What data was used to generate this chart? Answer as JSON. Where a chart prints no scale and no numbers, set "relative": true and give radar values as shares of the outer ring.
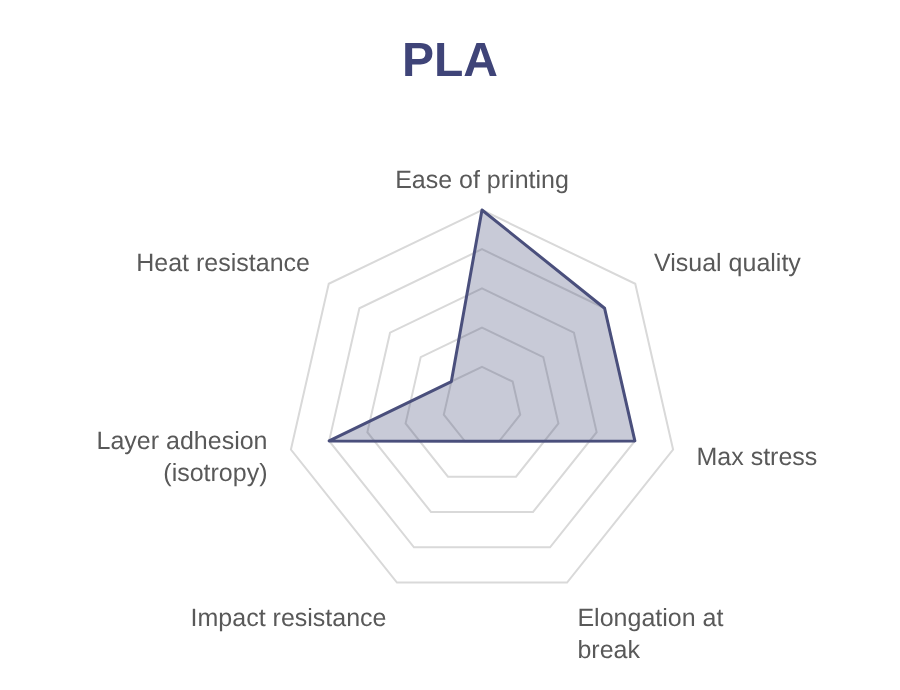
{
  "chart_data": {
    "type": "radar",
    "title": "PLA",
    "relative": true,
    "categories": [
      "Ease of printing",
      "Visual quality",
      "Max stress",
      "Elongation at break",
      "Impact resistance",
      "Layer adhesion (isotropy)",
      "Heat resistance"
    ],
    "series": [
      {
        "color": "#4a4f7c",
        "values": [
          1,
          0.8,
          0.8,
          0.2,
          0.2,
          0.8,
          0.2
        ]
      }
    ],
    "grid": true
  }
}
